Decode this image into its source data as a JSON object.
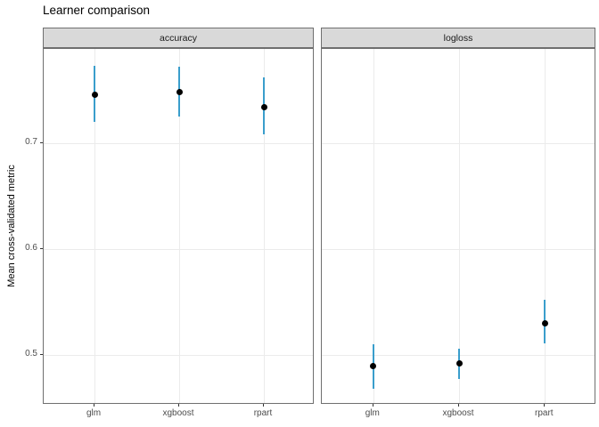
{
  "chart_data": {
    "type": "scatter",
    "title": "Learner comparison",
    "ylabel": "Mean cross-validated metric",
    "xlabel": "",
    "categories": [
      "glm",
      "xgboost",
      "rpart"
    ],
    "facets": [
      {
        "label": "accuracy",
        "points": [
          {
            "learner": "glm",
            "mean": 0.746,
            "lower": 0.72,
            "upper": 0.773
          },
          {
            "learner": "xgboost",
            "mean": 0.748,
            "lower": 0.725,
            "upper": 0.772
          },
          {
            "learner": "rpart",
            "mean": 0.734,
            "lower": 0.708,
            "upper": 0.762
          }
        ]
      },
      {
        "label": "logloss",
        "points": [
          {
            "learner": "glm",
            "mean": 0.49,
            "lower": 0.468,
            "upper": 0.51
          },
          {
            "learner": "xgboost",
            "mean": 0.492,
            "lower": 0.477,
            "upper": 0.506
          },
          {
            "learner": "rpart",
            "mean": 0.53,
            "lower": 0.511,
            "upper": 0.552
          }
        ]
      }
    ],
    "yticks": [
      {
        "value": 0.5,
        "label": "0.5"
      },
      {
        "value": 0.6,
        "label": "0.6"
      },
      {
        "value": 0.7,
        "label": "0.7"
      }
    ],
    "ylim": [
      0.453,
      0.789
    ],
    "grid": "major-only",
    "legend": "none",
    "colors": {
      "point": "#000000",
      "errorbar": "#3a9ecc",
      "strip_background": "#d9d9d9",
      "panel_border": "#6f6f6f",
      "gridline": "#ebebeb",
      "tick_text": "#4d4d4d"
    }
  }
}
